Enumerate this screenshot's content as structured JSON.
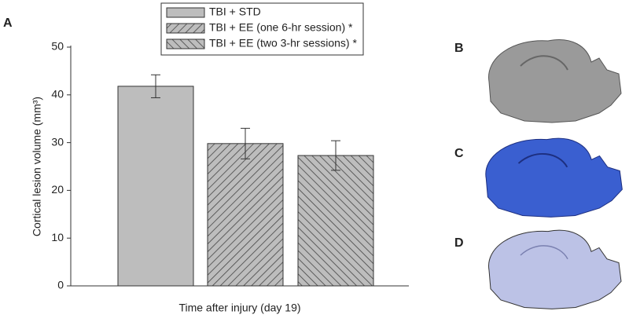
{
  "chart_data": {
    "type": "bar",
    "panel_labels": [
      "A",
      "B",
      "C",
      "D"
    ],
    "y_label": "Cortical lesion volume (mm³)",
    "x_label": "Time after injury (day 19)",
    "ylim": [
      0,
      50
    ],
    "yticks": [
      0,
      10,
      20,
      30,
      40,
      50
    ],
    "series": [
      {
        "name": "TBI + STD",
        "color": "#bdbdbd",
        "hatch": "none",
        "values": [
          41.8
        ],
        "errors": [
          2.4
        ]
      },
      {
        "name": "TBI + EE (one 6-hr session) *",
        "color": "#bdbdbd",
        "hatch": "forward",
        "values": [
          29.8
        ],
        "errors": [
          3.2
        ]
      },
      {
        "name": "TBI + EE (two 3-hr sessions) *",
        "color": "#bdbdbd",
        "hatch": "back",
        "values": [
          27.3
        ],
        "errors": [
          3.1
        ]
      }
    ]
  }
}
